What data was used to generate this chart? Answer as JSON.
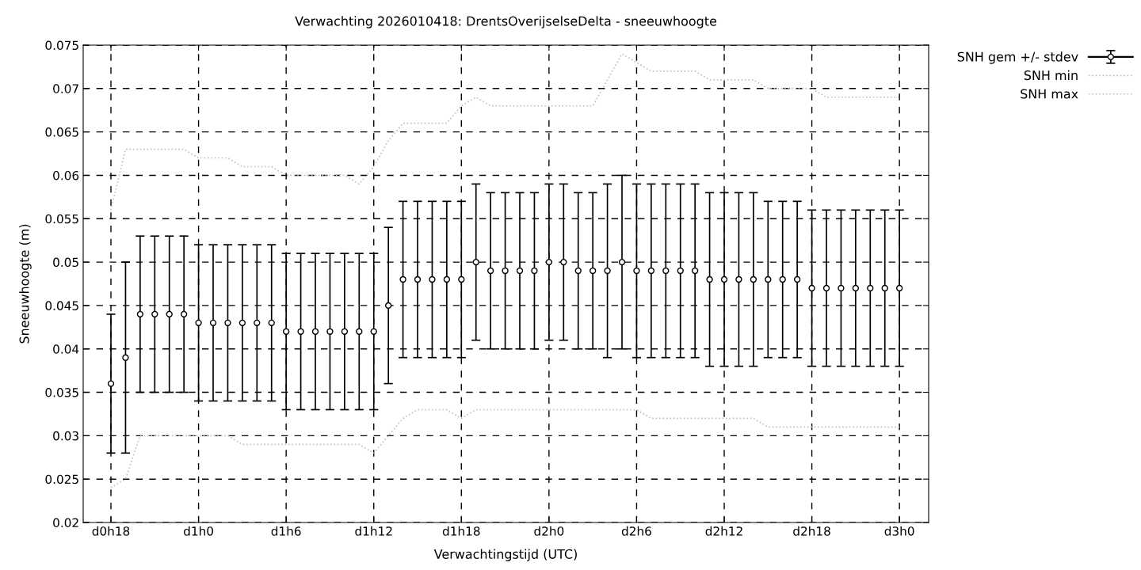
{
  "chart_data": {
    "type": "scatter",
    "title": "Verwachting 2026010418: DrentsOverijselseDelta - sneeuwhoogte",
    "xlabel": "Verwachtingstijd (UTC)",
    "ylabel": "Sneeuwhoogte (m)",
    "categories": [
      "d0h18",
      null,
      null,
      null,
      null,
      null,
      "d1h0",
      null,
      null,
      null,
      null,
      null,
      "d1h6",
      null,
      null,
      null,
      null,
      null,
      "d1h12",
      null,
      null,
      null,
      null,
      null,
      "d1h18",
      null,
      null,
      null,
      null,
      null,
      "d2h0",
      null,
      null,
      null,
      null,
      null,
      "d2h6",
      null,
      null,
      null,
      null,
      null,
      "d2h12",
      null,
      null,
      null,
      null,
      null,
      "d2h18",
      null,
      null,
      null,
      null,
      null,
      "d3h0"
    ],
    "series": [
      {
        "name": "SNH gem +/- stdev",
        "color": "#000000",
        "marker": "circle",
        "values": [
          0.036,
          0.039,
          0.044,
          0.044,
          0.044,
          0.044,
          0.043,
          0.043,
          0.043,
          0.043,
          0.043,
          0.043,
          0.042,
          0.042,
          0.042,
          0.042,
          0.042,
          0.042,
          0.042,
          0.045,
          0.048,
          0.048,
          0.048,
          0.048,
          0.048,
          0.05,
          0.049,
          0.049,
          0.049,
          0.049,
          0.05,
          0.05,
          0.049,
          0.049,
          0.049,
          0.05,
          0.049,
          0.049,
          0.049,
          0.049,
          0.049,
          0.048,
          0.048,
          0.048,
          0.048,
          0.048,
          0.048,
          0.048,
          0.047,
          0.047,
          0.047,
          0.047,
          0.047,
          0.047,
          0.047
        ],
        "errors": [
          [
            0.028,
            0.044
          ],
          [
            0.028,
            0.05
          ],
          [
            0.035,
            0.053
          ],
          [
            0.035,
            0.053
          ],
          [
            0.035,
            0.053
          ],
          [
            0.035,
            0.053
          ],
          [
            0.034,
            0.052
          ],
          [
            0.034,
            0.052
          ],
          [
            0.034,
            0.052
          ],
          [
            0.034,
            0.052
          ],
          [
            0.034,
            0.052
          ],
          [
            0.034,
            0.052
          ],
          [
            0.033,
            0.051
          ],
          [
            0.033,
            0.051
          ],
          [
            0.033,
            0.051
          ],
          [
            0.033,
            0.051
          ],
          [
            0.033,
            0.051
          ],
          [
            0.033,
            0.051
          ],
          [
            0.033,
            0.051
          ],
          [
            0.036,
            0.054
          ],
          [
            0.039,
            0.057
          ],
          [
            0.039,
            0.057
          ],
          [
            0.039,
            0.057
          ],
          [
            0.039,
            0.057
          ],
          [
            0.039,
            0.057
          ],
          [
            0.041,
            0.059
          ],
          [
            0.04,
            0.058
          ],
          [
            0.04,
            0.058
          ],
          [
            0.04,
            0.058
          ],
          [
            0.04,
            0.058
          ],
          [
            0.041,
            0.059
          ],
          [
            0.041,
            0.059
          ],
          [
            0.04,
            0.058
          ],
          [
            0.04,
            0.058
          ],
          [
            0.039,
            0.059
          ],
          [
            0.04,
            0.06
          ],
          [
            0.039,
            0.059
          ],
          [
            0.039,
            0.059
          ],
          [
            0.039,
            0.059
          ],
          [
            0.039,
            0.059
          ],
          [
            0.039,
            0.059
          ],
          [
            0.038,
            0.058
          ],
          [
            0.038,
            0.058
          ],
          [
            0.038,
            0.058
          ],
          [
            0.038,
            0.058
          ],
          [
            0.039,
            0.057
          ],
          [
            0.039,
            0.057
          ],
          [
            0.039,
            0.057
          ],
          [
            0.038,
            0.056
          ],
          [
            0.038,
            0.056
          ],
          [
            0.038,
            0.056
          ],
          [
            0.038,
            0.056
          ],
          [
            0.038,
            0.056
          ],
          [
            0.038,
            0.056
          ],
          [
            0.038,
            0.056
          ]
        ]
      },
      {
        "name": "SNH min",
        "type": "line",
        "color": "#c0c0c0",
        "line_style": "dotted",
        "values": [
          0.024,
          0.025,
          0.03,
          0.03,
          0.03,
          0.03,
          0.03,
          0.03,
          0.03,
          0.029,
          0.029,
          0.029,
          0.029,
          0.029,
          0.029,
          0.029,
          0.029,
          0.029,
          0.028,
          0.03,
          0.032,
          0.033,
          0.033,
          0.033,
          0.032,
          0.033,
          0.033,
          0.033,
          0.033,
          0.033,
          0.033,
          0.033,
          0.033,
          0.033,
          0.033,
          0.033,
          0.033,
          0.032,
          0.032,
          0.032,
          0.032,
          0.032,
          0.032,
          0.032,
          0.032,
          0.031,
          0.031,
          0.031,
          0.031,
          0.031,
          0.031,
          0.031,
          0.031,
          0.031,
          0.031
        ]
      },
      {
        "name": "SNH max",
        "type": "line",
        "color": "#c0c0c0",
        "line_style": "dotted",
        "values": [
          0.056,
          0.063,
          0.063,
          0.063,
          0.063,
          0.063,
          0.062,
          0.062,
          0.062,
          0.061,
          0.061,
          0.061,
          0.06,
          0.06,
          0.06,
          0.06,
          0.06,
          0.059,
          0.061,
          0.064,
          0.066,
          0.066,
          0.066,
          0.066,
          0.068,
          0.069,
          0.068,
          0.068,
          0.068,
          0.068,
          0.068,
          0.068,
          0.068,
          0.068,
          0.071,
          0.074,
          0.073,
          0.072,
          0.072,
          0.072,
          0.072,
          0.071,
          0.071,
          0.071,
          0.071,
          0.07,
          0.07,
          0.07,
          0.07,
          0.069,
          0.069,
          0.069,
          0.069,
          0.069,
          0.069
        ]
      }
    ],
    "ylim": [
      0.02,
      0.075
    ],
    "yticks": [
      0.02,
      0.025,
      0.03,
      0.035,
      0.04,
      0.045,
      0.05,
      0.055,
      0.06,
      0.065,
      0.07,
      0.075
    ],
    "grid": true,
    "legend": "top right"
  }
}
